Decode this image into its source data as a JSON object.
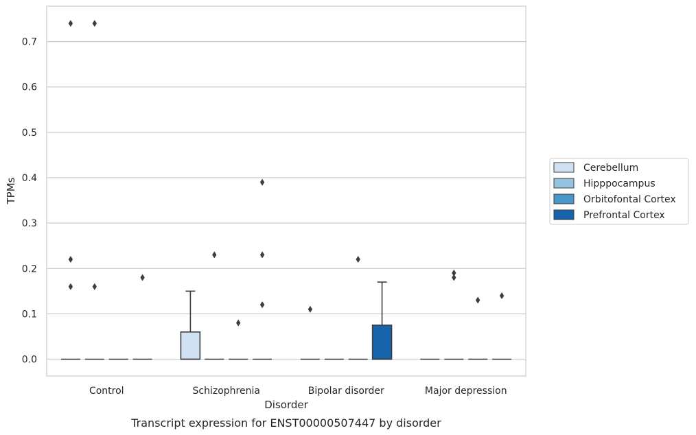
{
  "chart_data": {
    "type": "box",
    "caption": "Transcript expression for ENST00000507447 by disorder",
    "xlabel": "Disorder",
    "ylabel": "TPMs",
    "ylim": [
      -0.037,
      0.778
    ],
    "yticks": [
      0.0,
      0.1,
      0.2,
      0.3,
      0.4,
      0.5,
      0.6,
      0.7
    ],
    "ytick_labels": [
      "0.0",
      "0.1",
      "0.2",
      "0.3",
      "0.4",
      "0.5",
      "0.6",
      "0.7"
    ],
    "categories": [
      "Control",
      "Schizophrenia",
      "Bipolar disorder",
      "Major depression"
    ],
    "grid": "horizontal",
    "legend_position": "right",
    "series": [
      {
        "name": "Cerebellum",
        "color": "#d0e1f2",
        "boxes": [
          {
            "q1": 0,
            "median": 0,
            "q3": 0,
            "whisker_low": 0,
            "whisker_high": 0,
            "outliers": [
              0.16,
              0.22,
              0.74
            ]
          },
          {
            "q1": 0,
            "median": 0,
            "q3": 0.06,
            "whisker_low": 0,
            "whisker_high": 0.15,
            "outliers": []
          },
          {
            "q1": 0,
            "median": 0,
            "q3": 0,
            "whisker_low": 0,
            "whisker_high": 0,
            "outliers": [
              0.11
            ]
          },
          {
            "q1": 0,
            "median": 0,
            "q3": 0,
            "whisker_low": 0,
            "whisker_high": 0,
            "outliers": []
          }
        ]
      },
      {
        "name": "Hipppocampus",
        "color": "#94c4df",
        "boxes": [
          {
            "q1": 0,
            "median": 0,
            "q3": 0,
            "whisker_low": 0,
            "whisker_high": 0,
            "outliers": [
              0.16,
              0.74
            ]
          },
          {
            "q1": 0,
            "median": 0,
            "q3": 0,
            "whisker_low": 0,
            "whisker_high": 0,
            "outliers": [
              0.23
            ]
          },
          {
            "q1": 0,
            "median": 0,
            "q3": 0,
            "whisker_low": 0,
            "whisker_high": 0,
            "outliers": []
          },
          {
            "q1": 0,
            "median": 0,
            "q3": 0,
            "whisker_low": 0,
            "whisker_high": 0,
            "outliers": [
              0.18,
              0.19
            ]
          }
        ]
      },
      {
        "name": "Orbitofontal Cortex",
        "color": "#4a98c9",
        "boxes": [
          {
            "q1": 0,
            "median": 0,
            "q3": 0,
            "whisker_low": 0,
            "whisker_high": 0,
            "outliers": []
          },
          {
            "q1": 0,
            "median": 0,
            "q3": 0,
            "whisker_low": 0,
            "whisker_high": 0,
            "outliers": [
              0.08
            ]
          },
          {
            "q1": 0,
            "median": 0,
            "q3": 0,
            "whisker_low": 0,
            "whisker_high": 0,
            "outliers": [
              0.22
            ]
          },
          {
            "q1": 0,
            "median": 0,
            "q3": 0,
            "whisker_low": 0,
            "whisker_high": 0,
            "outliers": [
              0.13
            ]
          }
        ]
      },
      {
        "name": "Prefrontal Cortex",
        "color": "#1764ab",
        "boxes": [
          {
            "q1": 0,
            "median": 0,
            "q3": 0,
            "whisker_low": 0,
            "whisker_high": 0,
            "outliers": [
              0.18
            ]
          },
          {
            "q1": 0,
            "median": 0,
            "q3": 0,
            "whisker_low": 0,
            "whisker_high": 0,
            "outliers": [
              0.12,
              0.23,
              0.39
            ]
          },
          {
            "q1": 0,
            "median": 0,
            "q3": 0.075,
            "whisker_low": 0,
            "whisker_high": 0.17,
            "outliers": []
          },
          {
            "q1": 0,
            "median": 0,
            "q3": 0,
            "whisker_low": 0,
            "whisker_high": 0,
            "outliers": [
              0.14
            ]
          }
        ]
      }
    ]
  }
}
